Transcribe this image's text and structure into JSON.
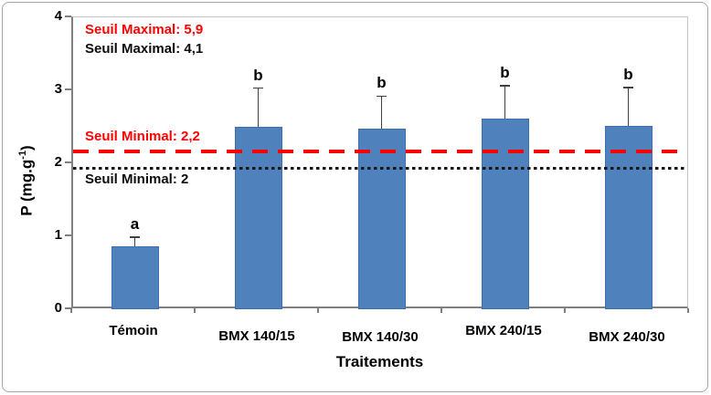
{
  "chart_data": {
    "type": "bar",
    "title": "",
    "categories": [
      "Témoin",
      "BMX 140/15",
      "BMX 140/30",
      "BMX 240/15",
      "BMX 240/30"
    ],
    "values": [
      0.86,
      2.5,
      2.48,
      2.61,
      2.51
    ],
    "error_upper": [
      0.13,
      0.53,
      0.44,
      0.45,
      0.53
    ],
    "significance_letters": [
      "a",
      "b",
      "b",
      "b",
      "b"
    ],
    "xlabel": "Traitements",
    "ylabel": "P (mg.g-1)",
    "ylabel_parts": {
      "prefix": "P (mg.g",
      "sup": "-1",
      "suffix": ")"
    },
    "ylim": [
      0,
      4
    ],
    "yticks": [
      0,
      1,
      2,
      3,
      4
    ],
    "grid": false,
    "legend": false,
    "bar_color": "#4f81bd",
    "bar_border_color": "#3e6fad",
    "reference_lines": [
      {
        "value": 2.16,
        "style": "dashed",
        "color": "#fe0000",
        "label": "Seuil Minimal: 2,2"
      },
      {
        "value": 1.93,
        "style": "dotted",
        "color": "#161616",
        "label": "Seuil Minimal: 2"
      }
    ],
    "annotations": [
      {
        "text": "Seuil Maximal: 5,9",
        "color": "#fe0000"
      },
      {
        "text": "Seuil Maximal: 4,1",
        "color": "#0d0d0d"
      }
    ]
  }
}
